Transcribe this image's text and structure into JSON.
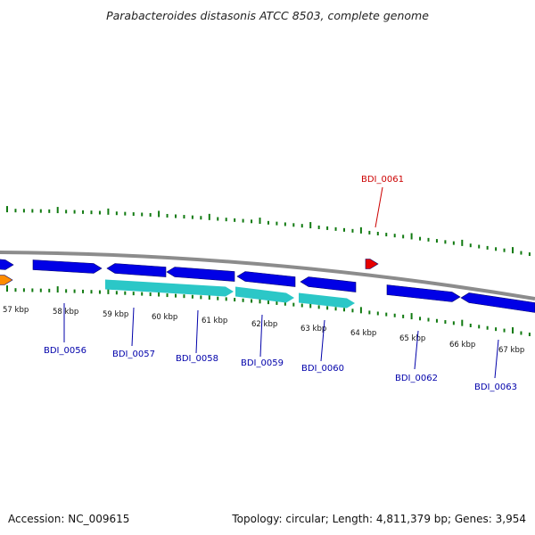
{
  "title": "Parabacteroides distasonis ATCC 8503, complete genome",
  "footer": {
    "accession": "Accession: NC_009615",
    "stats": "Topology: circular; Length: 4,811,379 bp; Genes: 3,954"
  },
  "colors": {
    "backbone": "#8c8c8c",
    "ticks": "#117a11",
    "gene_forward": "#0000e6",
    "gene_reverse": "#0000e6",
    "gene_highlight": "#e60000",
    "cds_band": "#2bc7c7",
    "feature_other": "#ff8c00",
    "label_normal": "#0000aa",
    "label_highlight": "#cc0000"
  },
  "scale_labels": [
    "57 kbp",
    "58 kbp",
    "59 kbp",
    "60 kbp",
    "61 kbp",
    "62 kbp",
    "63 kbp",
    "64 kbp",
    "65 kbp",
    "66 kbp",
    "67 kbp"
  ],
  "gene_labels": [
    {
      "name": "BDI_0056",
      "highlight": false
    },
    {
      "name": "BDI_0057",
      "highlight": false
    },
    {
      "name": "BDI_0058",
      "highlight": false
    },
    {
      "name": "BDI_0059",
      "highlight": false
    },
    {
      "name": "BDI_0060",
      "highlight": false
    },
    {
      "name": "BDI_0061",
      "highlight": true
    },
    {
      "name": "BDI_0062",
      "highlight": false
    },
    {
      "name": "BDI_0063",
      "highlight": false
    }
  ]
}
